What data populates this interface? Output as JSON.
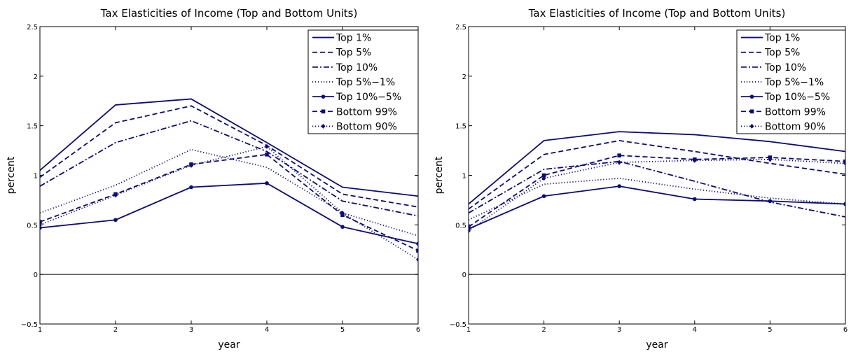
{
  "colors": {
    "series": "#0b0b7e",
    "axis": "#000000",
    "background": "#ffffff"
  },
  "chart_data": [
    {
      "type": "line",
      "title": "Tax Elasticities of Income (Top and Bottom Units)",
      "xlabel": "year",
      "ylabel": "percent",
      "xlim": [
        1,
        6
      ],
      "ylim": [
        -0.5,
        2.5
      ],
      "x_ticks": [
        "1",
        "2",
        "3",
        "4",
        "5",
        "6"
      ],
      "y_ticks": [
        "−0.5",
        "0",
        "0.5",
        "1",
        "1.5",
        "2",
        "2.5"
      ],
      "grid": false,
      "zero_line": true,
      "legend_position": "top-right",
      "x": [
        1,
        2,
        3,
        4,
        5,
        6
      ],
      "series": [
        {
          "name": "Top 1%",
          "style": "solid",
          "marker": "none",
          "values": [
            1.05,
            1.71,
            1.77,
            1.33,
            0.88,
            0.79
          ]
        },
        {
          "name": "Top 5%",
          "style": "dashed",
          "marker": "none",
          "values": [
            0.98,
            1.53,
            1.7,
            1.3,
            0.81,
            0.68
          ]
        },
        {
          "name": "Top 10%",
          "style": "dashdot",
          "marker": "none",
          "values": [
            0.89,
            1.33,
            1.55,
            1.24,
            0.74,
            0.59
          ]
        },
        {
          "name": "Top 5%−1%",
          "style": "dotted",
          "marker": "none",
          "values": [
            0.62,
            0.9,
            1.26,
            1.08,
            0.62,
            0.39
          ]
        },
        {
          "name": "Top 10%−5%",
          "style": "solid",
          "marker": "dot",
          "values": [
            0.47,
            0.55,
            0.88,
            0.92,
            0.48,
            0.31
          ]
        },
        {
          "name": "Bottom 99%",
          "style": "dashed",
          "marker": "square",
          "values": [
            0.53,
            0.81,
            1.11,
            1.21,
            0.6,
            0.24
          ]
        },
        {
          "name": "Bottom 90%",
          "style": "dotted",
          "marker": "diamond",
          "values": [
            0.5,
            0.8,
            1.1,
            1.29,
            0.62,
            0.15
          ]
        }
      ]
    },
    {
      "type": "line",
      "title": "Tax Elasticities of Income (Top and Bottom Units)",
      "xlabel": "year",
      "ylabel": "percent",
      "xlim": [
        1,
        6
      ],
      "ylim": [
        -0.5,
        2.5
      ],
      "x_ticks": [
        "1",
        "2",
        "3",
        "4",
        "5",
        "6"
      ],
      "y_ticks": [
        "−0.5",
        "0",
        "0.5",
        "1",
        "1.5",
        "2",
        "2.5"
      ],
      "grid": false,
      "zero_line": true,
      "legend_position": "top-right",
      "x": [
        1,
        2,
        3,
        4,
        5,
        6
      ],
      "series": [
        {
          "name": "Top 1%",
          "style": "solid",
          "marker": "none",
          "values": [
            0.71,
            1.35,
            1.44,
            1.41,
            1.34,
            1.24
          ]
        },
        {
          "name": "Top 5%",
          "style": "dashed",
          "marker": "none",
          "values": [
            0.66,
            1.21,
            1.35,
            1.24,
            1.12,
            1.01
          ]
        },
        {
          "name": "Top 10%",
          "style": "dashdot",
          "marker": "none",
          "values": [
            0.62,
            1.06,
            1.14,
            0.94,
            0.73,
            0.58
          ]
        },
        {
          "name": "Top 5%−1%",
          "style": "dotted",
          "marker": "none",
          "values": [
            0.55,
            0.91,
            0.97,
            0.86,
            0.77,
            0.71
          ]
        },
        {
          "name": "Top 10%−5%",
          "style": "solid",
          "marker": "dot",
          "values": [
            0.46,
            0.79,
            0.89,
            0.76,
            0.74,
            0.71
          ]
        },
        {
          "name": "Bottom 99%",
          "style": "dashed",
          "marker": "square",
          "values": [
            0.48,
            1.0,
            1.2,
            1.16,
            1.18,
            1.14
          ]
        },
        {
          "name": "Bottom 90%",
          "style": "dotted",
          "marker": "diamond",
          "values": [
            0.44,
            0.97,
            1.13,
            1.15,
            1.16,
            1.12
          ]
        }
      ]
    }
  ]
}
